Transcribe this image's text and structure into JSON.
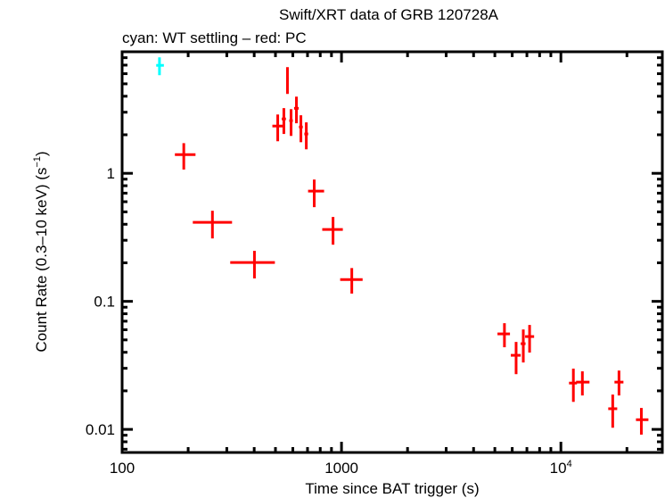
{
  "chart_data": {
    "type": "scatter",
    "title": "Swift/XRT data of GRB 120728A",
    "subtitle": "cyan: WT settling – red: PC",
    "xlabel": "Time since BAT trigger (s)",
    "ylabel": "Count Rate (0.3–10 keV) (s",
    "ylabel_sup": "−1",
    "ylabel_close": ")",
    "xscale": "log",
    "yscale": "log",
    "xlim": [
      100,
      29000
    ],
    "ylim": [
      0.0066,
      8.9
    ],
    "grid": false,
    "x_ticks": [
      {
        "value": 100,
        "label": "100"
      },
      {
        "value": 1000,
        "label": "1000"
      },
      {
        "value": 10000,
        "label": "10",
        "sup": "4"
      }
    ],
    "y_ticks": [
      {
        "value": 0.01,
        "label": "0.01"
      },
      {
        "value": 0.1,
        "label": "0.1"
      },
      {
        "value": 1,
        "label": "1"
      }
    ],
    "series": [
      {
        "name": "WT settling",
        "color": "#00ffff",
        "points": [
          {
            "x": 148,
            "xlo": 143,
            "xhi": 155,
            "y": 6.97,
            "ylo": 5.84,
            "yhi": 8.05
          }
        ]
      },
      {
        "name": "PC",
        "color": "#ff0000",
        "points": [
          {
            "x": 191,
            "xlo": 174,
            "xhi": 216,
            "y": 1.4,
            "ylo": 1.07,
            "yhi": 1.72
          },
          {
            "x": 258,
            "xlo": 210,
            "xhi": 317,
            "y": 0.414,
            "ylo": 0.31,
            "yhi": 0.51
          },
          {
            "x": 401,
            "xlo": 311,
            "xhi": 497,
            "y": 0.201,
            "ylo": 0.151,
            "yhi": 0.248
          },
          {
            "x": 512,
            "xlo": 484,
            "xhi": 541,
            "y": 2.34,
            "ylo": 1.78,
            "yhi": 2.88
          },
          {
            "x": 546,
            "xlo": 534,
            "xhi": 558,
            "y": 2.66,
            "ylo": 2.03,
            "yhi": 3.23
          },
          {
            "x": 567,
            "xlo": 560,
            "xhi": 574,
            "y": 5.48,
            "ylo": 4.17,
            "yhi": 6.75
          },
          {
            "x": 589,
            "xlo": 578,
            "xhi": 600,
            "y": 2.58,
            "ylo": 1.96,
            "yhi": 3.17
          },
          {
            "x": 623,
            "xlo": 608,
            "xhi": 638,
            "y": 3.22,
            "ylo": 2.46,
            "yhi": 3.97
          },
          {
            "x": 653,
            "xlo": 640,
            "xhi": 666,
            "y": 2.3,
            "ylo": 1.75,
            "yhi": 2.84
          },
          {
            "x": 691,
            "xlo": 677,
            "xhi": 705,
            "y": 2.03,
            "ylo": 1.54,
            "yhi": 2.5
          },
          {
            "x": 751,
            "xlo": 704,
            "xhi": 833,
            "y": 0.726,
            "ylo": 0.544,
            "yhi": 0.894
          },
          {
            "x": 915,
            "xlo": 817,
            "xhi": 1014,
            "y": 0.364,
            "ylo": 0.277,
            "yhi": 0.456
          },
          {
            "x": 1114,
            "xlo": 986,
            "xhi": 1248,
            "y": 0.148,
            "ylo": 0.115,
            "yhi": 0.182
          },
          {
            "x": 5530,
            "xlo": 5140,
            "xhi": 5860,
            "y": 0.0557,
            "ylo": 0.0438,
            "yhi": 0.0675
          },
          {
            "x": 6250,
            "xlo": 5910,
            "xhi": 6560,
            "y": 0.0379,
            "ylo": 0.027,
            "yhi": 0.0482
          },
          {
            "x": 6740,
            "xlo": 6560,
            "xhi": 6900,
            "y": 0.0467,
            "ylo": 0.0333,
            "yhi": 0.0603
          },
          {
            "x": 7200,
            "xlo": 6870,
            "xhi": 7550,
            "y": 0.0531,
            "ylo": 0.0398,
            "yhi": 0.0654
          },
          {
            "x": 11400,
            "xlo": 10890,
            "xhi": 11840,
            "y": 0.023,
            "ylo": 0.0164,
            "yhi": 0.0298
          },
          {
            "x": 12530,
            "xlo": 11730,
            "xhi": 13500,
            "y": 0.0234,
            "ylo": 0.0184,
            "yhi": 0.0284
          },
          {
            "x": 17230,
            "xlo": 16440,
            "xhi": 18060,
            "y": 0.0145,
            "ylo": 0.0103,
            "yhi": 0.0187
          },
          {
            "x": 18400,
            "xlo": 17550,
            "xhi": 19280,
            "y": 0.0234,
            "ylo": 0.0184,
            "yhi": 0.0288
          },
          {
            "x": 23270,
            "xlo": 21990,
            "xhi": 25060,
            "y": 0.0119,
            "ylo": 0.0091,
            "yhi": 0.0147
          }
        ]
      }
    ]
  }
}
